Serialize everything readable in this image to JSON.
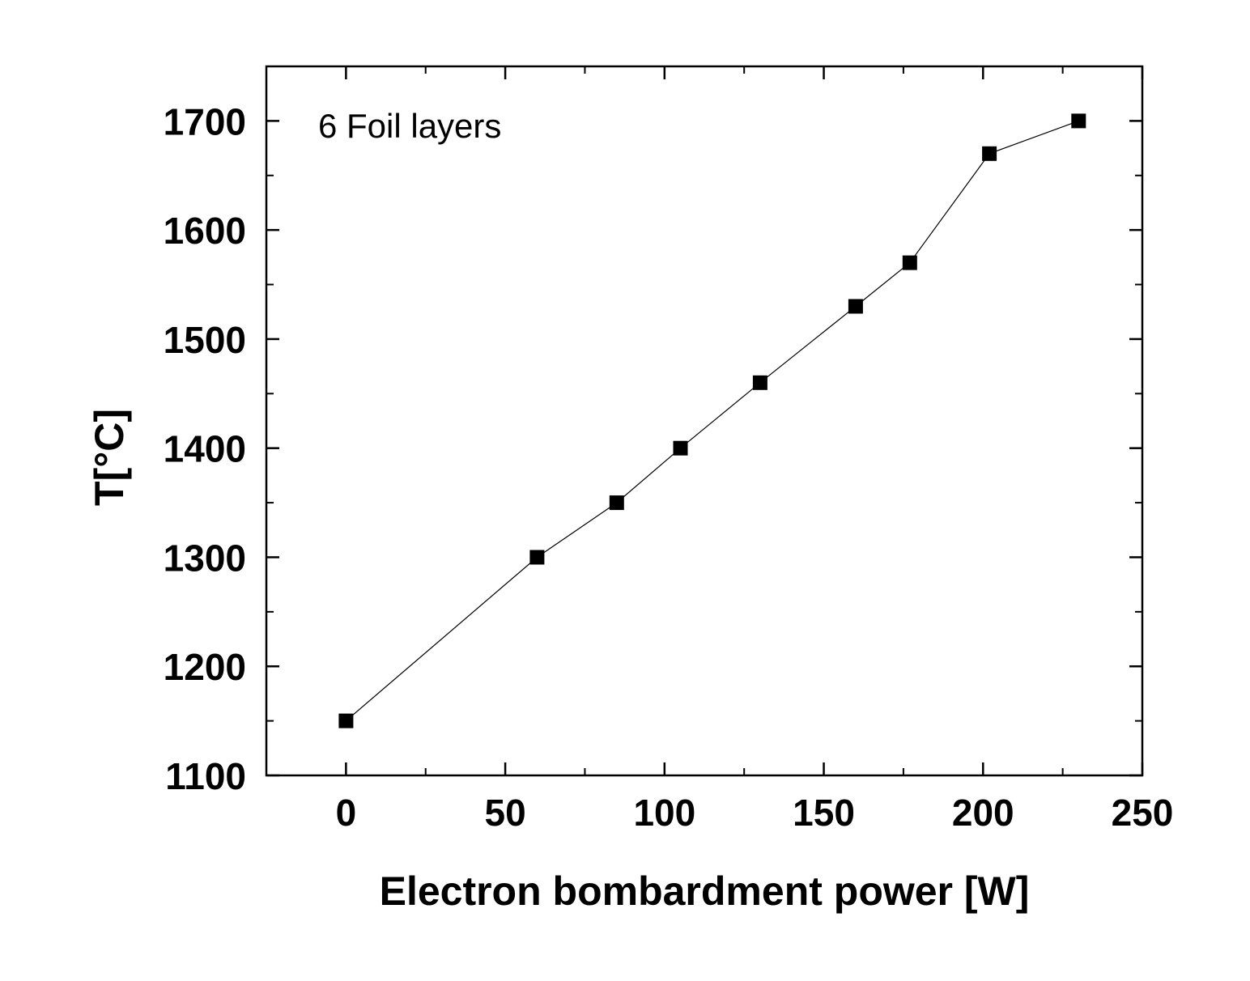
{
  "chart_data": {
    "type": "line",
    "title": "",
    "xlabel": "Electron bombardment power [W]",
    "ylabel": "T[°C]",
    "xlim": [
      -25,
      250
    ],
    "ylim": [
      1100,
      1750
    ],
    "x_ticks": [
      0,
      50,
      100,
      150,
      200,
      250
    ],
    "y_ticks": [
      1100,
      1200,
      1300,
      1400,
      1500,
      1600,
      1700
    ],
    "grid": false,
    "legend": "none",
    "annotation": "6 Foil layers",
    "series": [
      {
        "marker": "square",
        "color": "#000000",
        "x": [
          0,
          60,
          85,
          105,
          130,
          160,
          177,
          202,
          230
        ],
        "y": [
          1150,
          1300,
          1350,
          1400,
          1460,
          1530,
          1570,
          1670,
          1700
        ]
      }
    ]
  }
}
